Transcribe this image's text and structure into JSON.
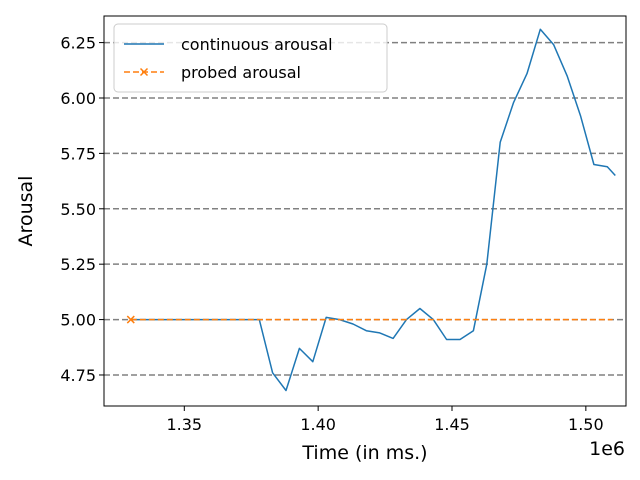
{
  "chart_data": {
    "type": "line",
    "title": "",
    "xlabel": "Time (in ms.)",
    "ylabel": "Arousal",
    "x_offset_label": "1e6",
    "xlim": [
      1320000,
      1515000
    ],
    "ylim": [
      4.61,
      6.37
    ],
    "x_ticks": [
      1350000,
      1400000,
      1450000,
      1500000
    ],
    "x_tick_labels": [
      "1.35",
      "1.40",
      "1.45",
      "1.50"
    ],
    "y_ticks": [
      4.75,
      5.0,
      5.25,
      5.5,
      5.75,
      6.0,
      6.25
    ],
    "y_tick_labels": [
      "4.75",
      "5.00",
      "5.25",
      "5.50",
      "5.75",
      "6.00",
      "6.25"
    ],
    "grid": "horizontal dashed",
    "legend_position": "top-left",
    "series": [
      {
        "name": "continuous arousal",
        "color": "#1f77b4",
        "style": "solid",
        "x": [
          1330000,
          1378000,
          1383000,
          1388000,
          1393000,
          1398000,
          1403000,
          1408000,
          1413000,
          1418000,
          1423000,
          1428000,
          1433000,
          1438000,
          1443000,
          1448000,
          1453000,
          1458000,
          1463000,
          1468000,
          1473000,
          1478000,
          1483000,
          1488000,
          1493000,
          1498000,
          1503000,
          1508000,
          1511000
        ],
        "y": [
          5.0,
          5.0,
          4.76,
          4.68,
          4.87,
          4.81,
          5.01,
          5.0,
          4.98,
          4.95,
          4.94,
          4.915,
          5.0,
          5.05,
          5.0,
          4.91,
          4.91,
          4.95,
          5.25,
          5.8,
          5.98,
          6.11,
          6.31,
          6.24,
          6.1,
          5.92,
          5.7,
          5.69,
          5.65
        ]
      },
      {
        "name": "probed arousal",
        "color": "#ff7f0e",
        "style": "dashed",
        "marker": "x",
        "x": [
          1330000,
          1510000
        ],
        "y": [
          5.0,
          5.0
        ]
      }
    ]
  }
}
